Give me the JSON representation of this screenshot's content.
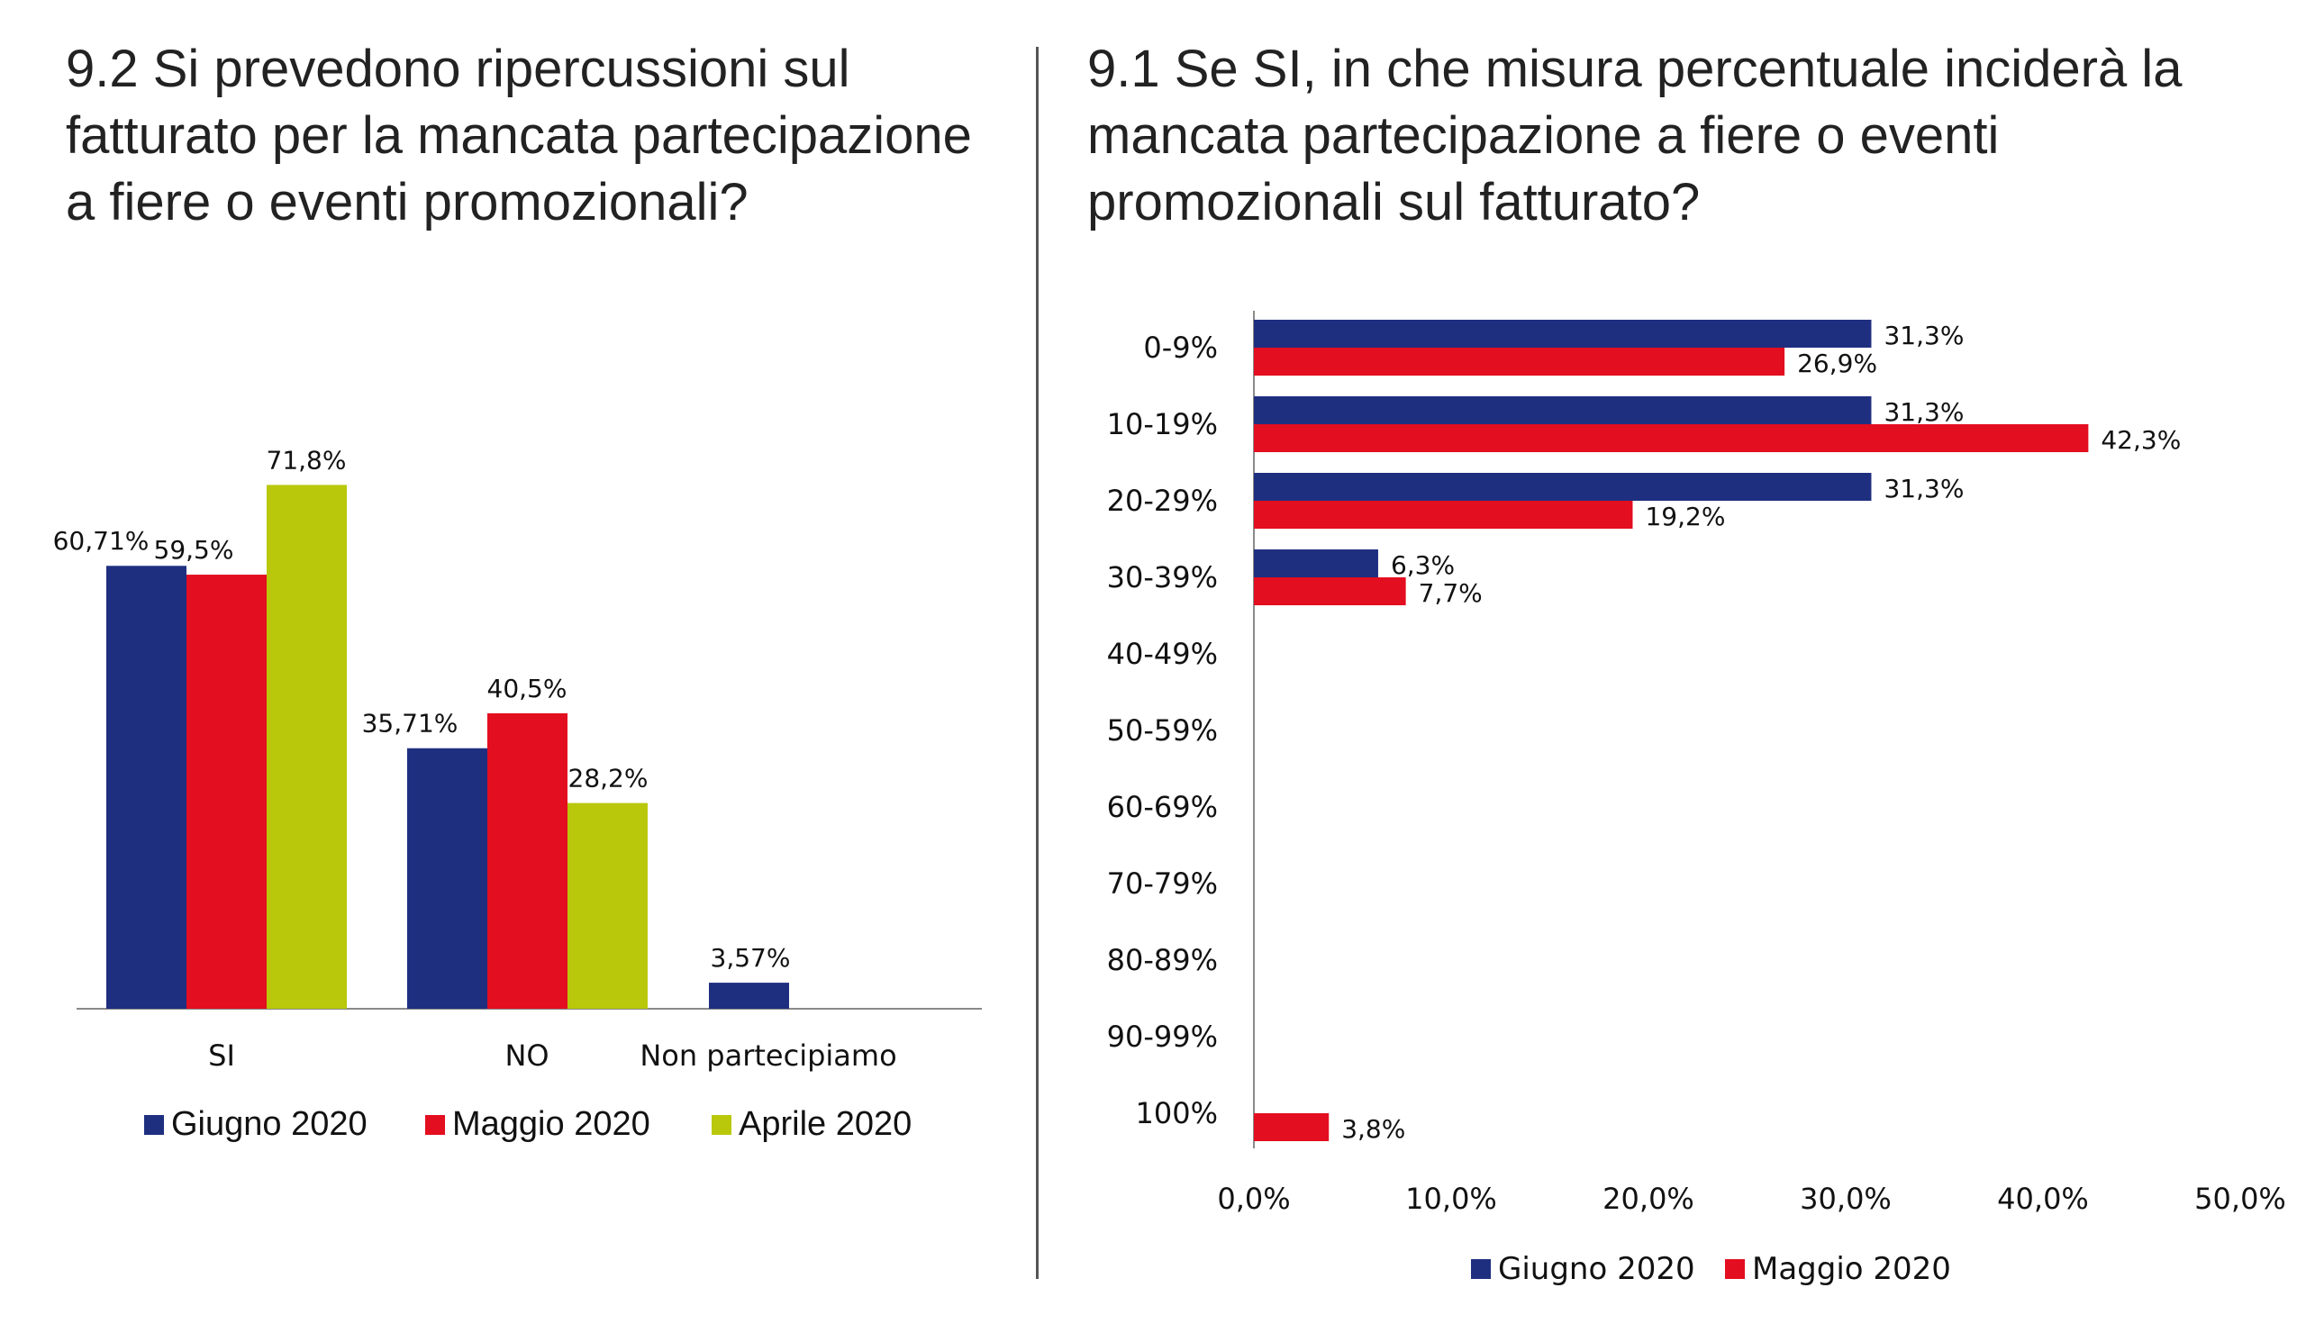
{
  "chart_data": [
    {
      "type": "bar",
      "title": "9.2 Si prevedono ripercussioni sul fatturato per la mancata partecipazione a fiere o eventi promozionali?",
      "categories": [
        "SI",
        "NO",
        "Non partecipiamo"
      ],
      "series": [
        {
          "name": "Giugno 2020",
          "color": "#1f2f80",
          "values": [
            60.71,
            35.71,
            3.57
          ],
          "labels": [
            "60,71%",
            "35,71%",
            "3,57%"
          ]
        },
        {
          "name": "Maggio 2020",
          "color": "#e30e1f",
          "values": [
            59.5,
            40.5,
            null
          ],
          "labels": [
            "59,5%",
            "40,5%",
            ""
          ]
        },
        {
          "name": "Aprile 2020",
          "color": "#b9c80a",
          "values": [
            71.8,
            28.2,
            null
          ],
          "labels": [
            "71,8%",
            "28,2%",
            ""
          ]
        }
      ],
      "ylim": [
        0,
        100
      ],
      "legend": "bottom"
    },
    {
      "type": "bar",
      "orientation": "horizontal",
      "title": "9.1 Se SI, in che misura percentuale inciderà la mancata partecipazione a fiere o eventi promozionali sul fatturato?",
      "categories": [
        "0-9%",
        "10-19%",
        "20-29%",
        "30-39%",
        "40-49%",
        "50-59%",
        "60-69%",
        "70-79%",
        "80-89%",
        "90-99%",
        "100%"
      ],
      "series": [
        {
          "name": "Giugno 2020",
          "color": "#1f2f80",
          "values": [
            31.3,
            31.3,
            31.3,
            6.3,
            null,
            null,
            null,
            null,
            null,
            null,
            null
          ],
          "labels": [
            "31,3%",
            "31,3%",
            "31,3%",
            "6,3%",
            "",
            "",
            "",
            "",
            "",
            "",
            ""
          ]
        },
        {
          "name": "Maggio 2020",
          "color": "#e30e1f",
          "values": [
            26.9,
            42.3,
            19.2,
            7.7,
            null,
            null,
            null,
            null,
            null,
            null,
            3.8
          ],
          "labels": [
            "26,9%",
            "42,3%",
            "19,2%",
            "7,7%",
            "",
            "",
            "",
            "",
            "",
            "",
            "3,8%"
          ]
        }
      ],
      "xlim": [
        0,
        50
      ],
      "xticks": [
        "0,0%",
        "10,0%",
        "20,0%",
        "30,0%",
        "40,0%",
        "50,0%"
      ],
      "legend": "bottom"
    }
  ]
}
